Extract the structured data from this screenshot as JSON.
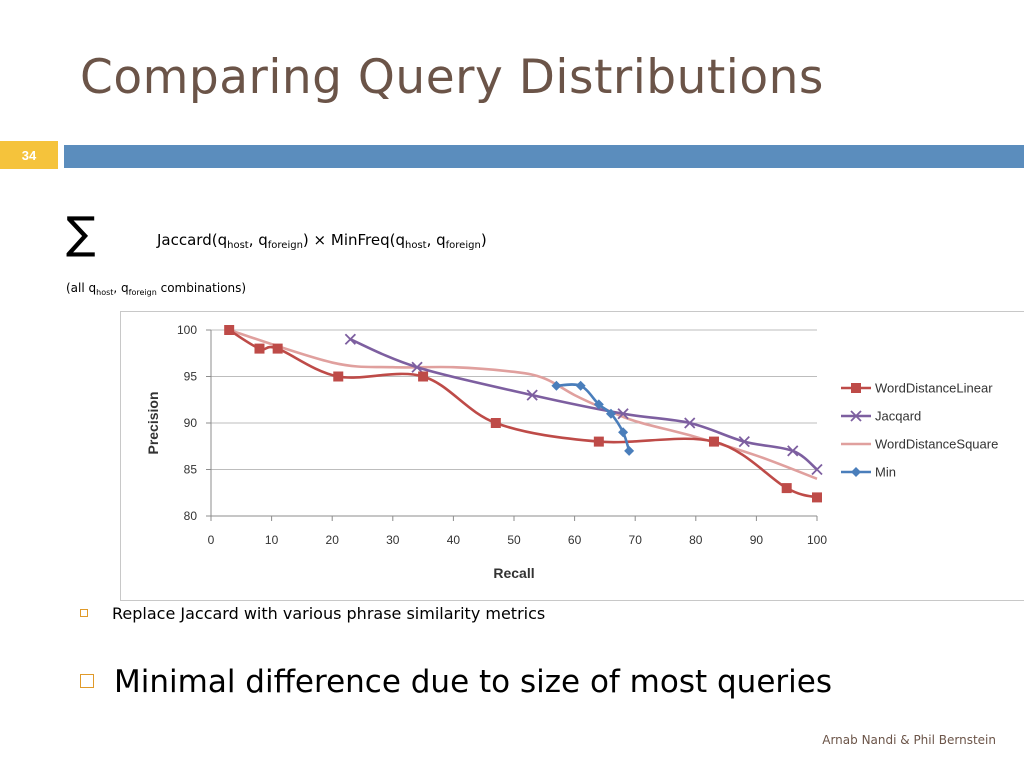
{
  "slide": {
    "title": "Comparing Query Distributions",
    "number": "34",
    "sigma": "∑",
    "formula": {
      "jaccard": "Jaccard(q",
      "host": "host",
      "comma": ", q",
      "foreign": "foreign",
      "close_times": ") ⨯ MinFreq(q",
      "close": ")"
    },
    "sum_note": {
      "open": "(all q",
      "host": "host",
      "comma": ", q",
      "foreign": "foreign",
      "rest": " combinations)"
    },
    "bullets": [
      "Replace Jaccard with various phrase similarity metrics",
      "Minimal difference due to size of most queries"
    ],
    "footer": "Arnab Nandi & Phil Bernstein"
  },
  "chart_data": {
    "type": "line",
    "xlabel": "Recall",
    "ylabel": "Precision",
    "xlim": [
      0,
      100
    ],
    "ylim": [
      80,
      100
    ],
    "xticks": [
      0,
      10,
      20,
      30,
      40,
      50,
      60,
      70,
      80,
      90,
      100
    ],
    "yticks": [
      80,
      85,
      90,
      95,
      100
    ],
    "grid": "horizontal",
    "legend": "right",
    "series": [
      {
        "name": "WordDistanceLinear",
        "color": "#be4b48",
        "marker": "square",
        "x": [
          3,
          8,
          11,
          21,
          35,
          47,
          64,
          83,
          95,
          100
        ],
        "y": [
          100,
          98,
          98,
          95,
          95,
          90,
          88,
          88,
          83,
          82
        ]
      },
      {
        "name": "Jacqard",
        "color": "#7d5fa0",
        "marker": "x",
        "x": [
          23,
          34,
          53,
          68,
          79,
          88,
          96,
          100
        ],
        "y": [
          99,
          96,
          93,
          91,
          90,
          88,
          87,
          85
        ]
      },
      {
        "name": "WordDistanceSquare",
        "color": "#e0a09e",
        "marker": "none",
        "x": [
          3,
          20,
          30,
          40,
          50,
          55,
          60,
          65,
          70,
          80,
          90,
          100
        ],
        "y": [
          100,
          96.5,
          96,
          96,
          95.5,
          94.8,
          93,
          91.5,
          90.2,
          88.5,
          86.5,
          84
        ]
      },
      {
        "name": "Min",
        "color": "#4a7ebb",
        "marker": "diamond",
        "x": [
          57,
          61,
          64,
          66,
          68,
          69
        ],
        "y": [
          94,
          94,
          92,
          91,
          89,
          87
        ]
      }
    ]
  }
}
